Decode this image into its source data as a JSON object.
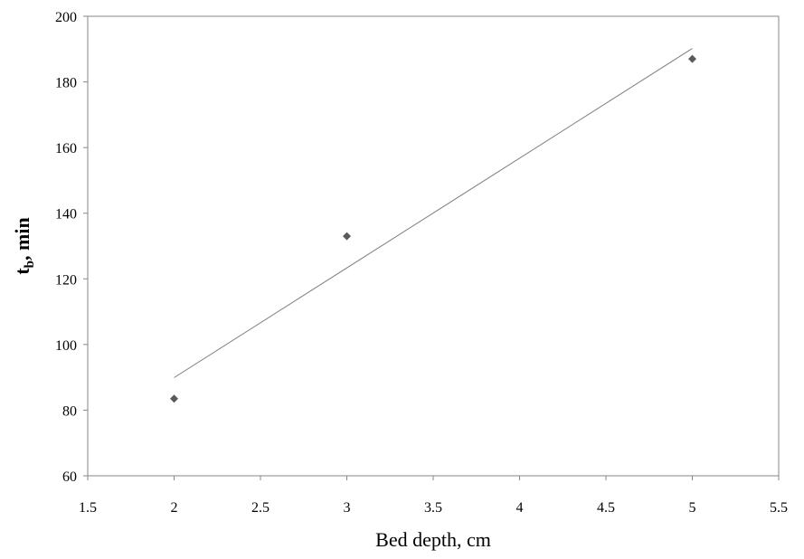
{
  "chart_data": {
    "type": "scatter",
    "xlabel": "Bed depth, cm",
    "ylabel": {
      "text": "t",
      "subscript": "b",
      "suffix": ", min"
    },
    "x": [
      2,
      3,
      5
    ],
    "values": [
      83.5,
      133,
      187
    ],
    "color": "#5a5a5a",
    "trendline": {
      "x": [
        2,
        5
      ],
      "y": [
        89.9,
        190.2
      ],
      "color": "#7f7f7f"
    },
    "xlim": [
      1.5,
      5.5
    ],
    "xticks": [
      1.5,
      2,
      2.5,
      3,
      3.5,
      4,
      4.5,
      5,
      5.5
    ],
    "ylim": [
      60,
      200
    ],
    "yticks": [
      60,
      80,
      100,
      120,
      140,
      160,
      180,
      200
    ],
    "grid": false
  }
}
